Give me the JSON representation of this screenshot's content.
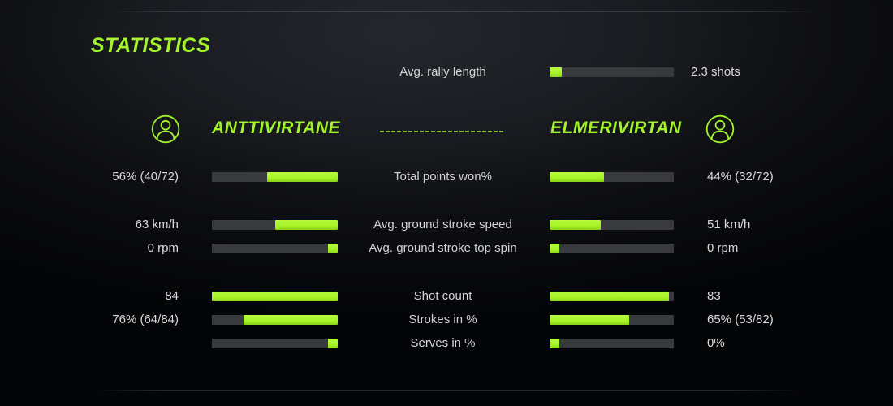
{
  "title": "STATISTICS",
  "colors": {
    "accent": "#a4f42c",
    "bar_track": "#393a3d",
    "bar_fill": "#a6f324",
    "text": "#d8d9da"
  },
  "rally": {
    "label": "Avg. rally length",
    "value": "2.3 shots",
    "fill_pct": 10
  },
  "players": {
    "left": {
      "name": "ANTTIVIRTANE",
      "icon": "user-icon"
    },
    "right": {
      "name": "ELMERIVIRTAN",
      "icon": "user-icon"
    }
  },
  "rows": [
    {
      "label": "Total points won%",
      "left_value": "56% (40/72)",
      "right_value": "44% (32/72)",
      "left_fill_pct": 56,
      "right_fill_pct": 44
    },
    {
      "label": "Avg. ground stroke speed",
      "left_value": "63 km/h",
      "right_value": "51 km/h",
      "left_fill_pct": 50,
      "right_fill_pct": 41
    },
    {
      "label": "Avg. ground stroke top spin",
      "left_value": "0 rpm",
      "right_value": "0 rpm",
      "left_fill_pct": 8,
      "right_fill_pct": 8
    },
    {
      "label": "Shot count",
      "left_value": "84",
      "right_value": "83",
      "left_fill_pct": 100,
      "right_fill_pct": 96
    },
    {
      "label": "Strokes in %",
      "left_value": "76% (64/84)",
      "right_value": "65% (53/82)",
      "left_fill_pct": 75,
      "right_fill_pct": 64
    },
    {
      "label": "Serves in %",
      "left_value": "",
      "right_value": "0%",
      "left_fill_pct": 8,
      "right_fill_pct": 8
    }
  ]
}
